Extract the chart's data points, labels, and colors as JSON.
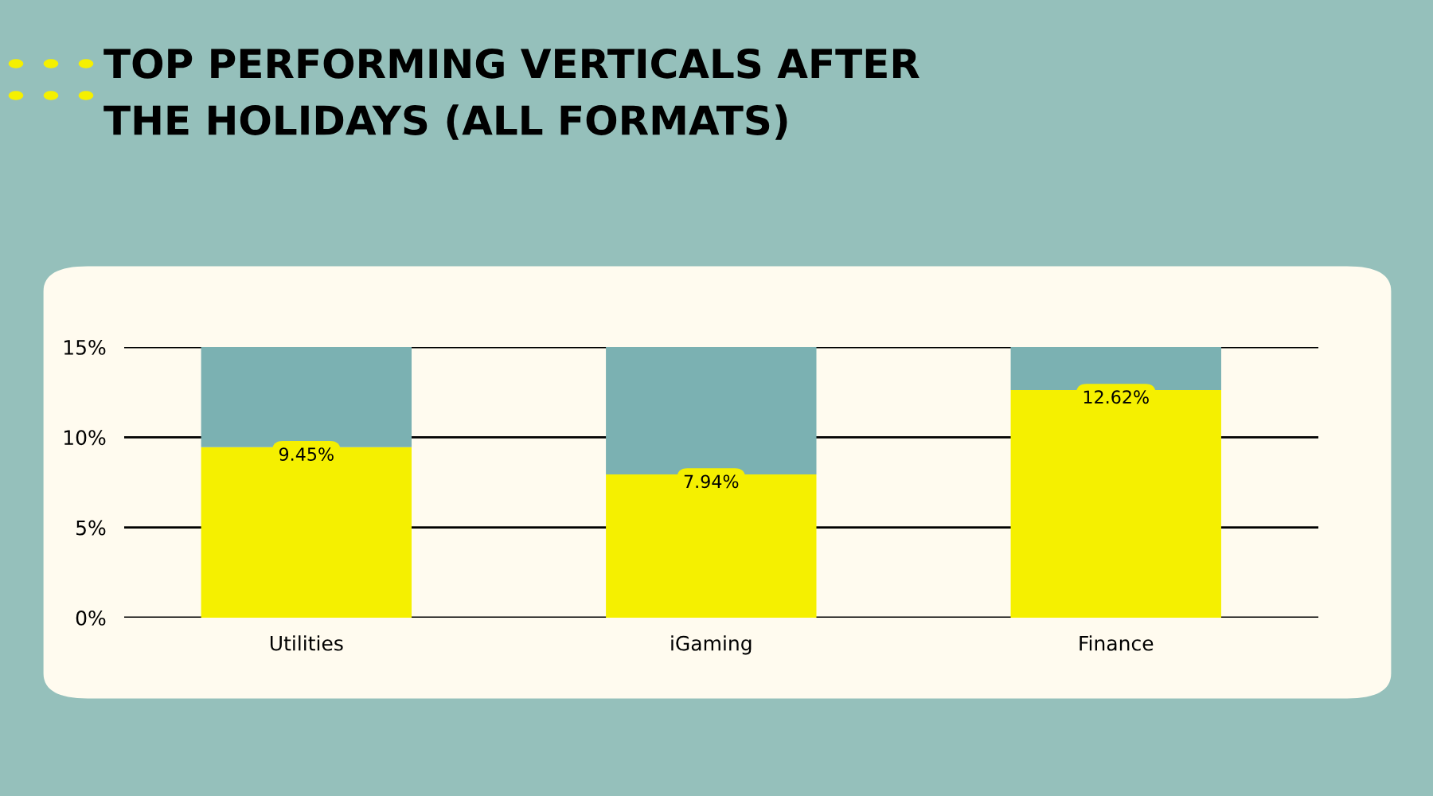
{
  "chart_data": {
    "type": "bar",
    "title": "TOP PERFORMING VERTICALS AFTER\nTHE HOLIDAYS (ALL FORMATS)",
    "categories": [
      "Utilities",
      "iGaming",
      "Finance"
    ],
    "series": [
      {
        "color": "#f5f000",
        "values": [
          9.45,
          7.94,
          12.62
        ],
        "value_labels": [
          "9.45%",
          "7.94%",
          "12.62%"
        ]
      },
      {
        "color": "#7bb1b2",
        "values": [
          5.55,
          7.06,
          2.38
        ]
      }
    ],
    "stacked": true,
    "ylim": [
      0,
      15
    ],
    "yticks": [
      {
        "value": 0,
        "label": "0%"
      },
      {
        "value": 5,
        "label": "5%"
      },
      {
        "value": 10,
        "label": "10%"
      },
      {
        "value": 15,
        "label": "15%"
      }
    ],
    "grid": "y",
    "legend": false
  }
}
